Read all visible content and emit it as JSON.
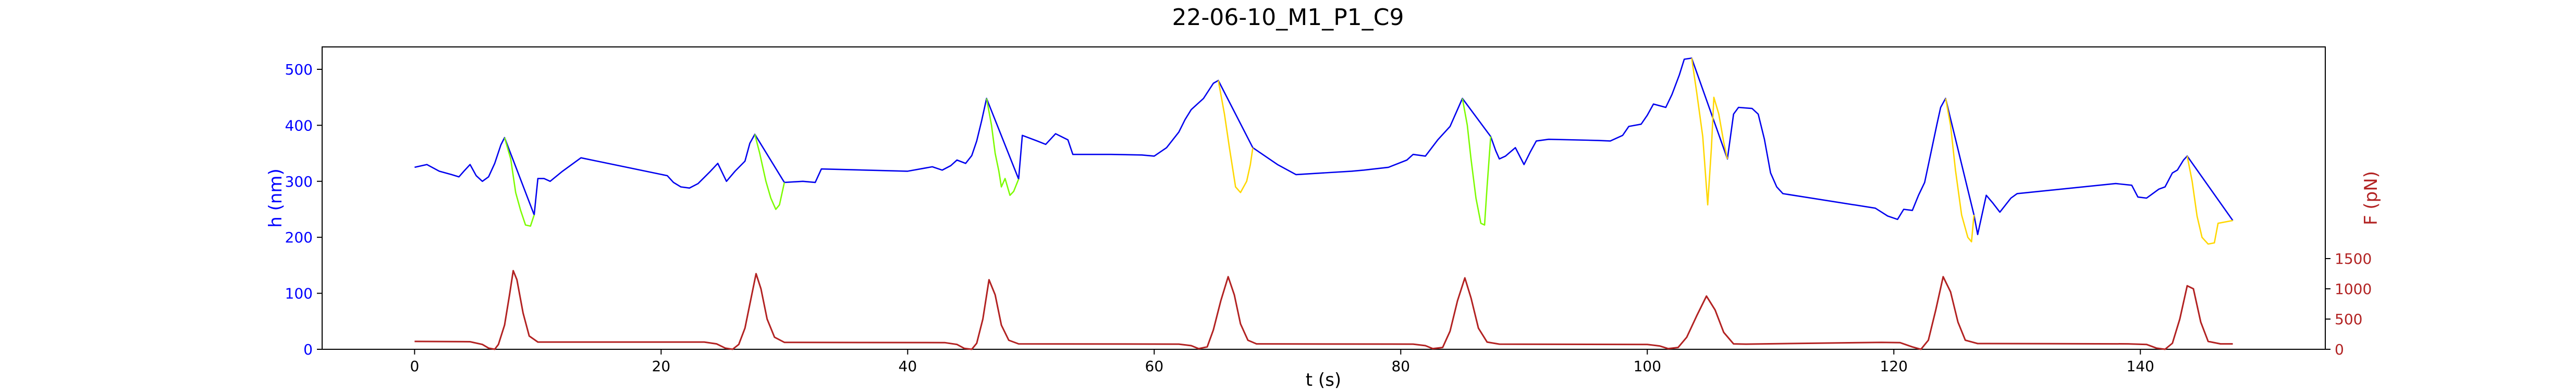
{
  "chart_data": {
    "type": "line",
    "title": "22-06-10_M1_P1_C9",
    "xlabel": "t (s)",
    "ylabel_left": "h (nm)",
    "ylabel_right": "F (pN)",
    "xlim": [
      -7.5,
      155
    ],
    "ylim_left": [
      0,
      540
    ],
    "ylim_right": [
      0,
      5000
    ],
    "x_ticks": [
      0,
      20,
      40,
      60,
      80,
      100,
      120,
      140
    ],
    "y_ticks_left": [
      0,
      100,
      200,
      300,
      400,
      500
    ],
    "y_ticks_right": [
      0,
      500,
      1000,
      1500
    ],
    "grid": false,
    "colors": {
      "height_base": "#0000ee",
      "segment_green": "#7cfc00",
      "segment_gold": "#ffd700",
      "force": "#b22222",
      "left_axis_text": "#0000ff",
      "right_axis_text": "#b22222"
    },
    "series": [
      {
        "axis": "left",
        "color": "#0000ee",
        "points": [
          [
            0,
            325
          ],
          [
            1,
            330
          ],
          [
            2,
            318
          ],
          [
            3,
            312
          ],
          [
            3.6,
            308
          ],
          [
            4,
            318
          ],
          [
            4.5,
            330
          ],
          [
            5.0,
            310
          ],
          [
            5.5,
            300
          ],
          [
            6.0,
            308
          ],
          [
            6.5,
            332
          ],
          [
            7.0,
            365
          ],
          [
            7.3,
            378
          ],
          [
            9.7,
            240
          ],
          [
            10.0,
            305
          ],
          [
            10.5,
            305
          ],
          [
            11.0,
            300
          ],
          [
            12.0,
            318
          ],
          [
            13.5,
            342
          ],
          [
            20.5,
            310
          ],
          [
            21.0,
            298
          ],
          [
            21.6,
            290
          ],
          [
            22.3,
            288
          ],
          [
            23.0,
            296
          ],
          [
            24.0,
            318
          ],
          [
            24.6,
            332
          ],
          [
            25.3,
            300
          ],
          [
            26.0,
            318
          ],
          [
            26.8,
            336
          ],
          [
            27.2,
            368
          ],
          [
            27.6,
            384
          ],
          [
            30.0,
            298
          ],
          [
            31.5,
            300
          ],
          [
            32.5,
            298
          ],
          [
            33.0,
            322
          ],
          [
            40.0,
            318
          ],
          [
            42.0,
            326
          ],
          [
            42.8,
            320
          ],
          [
            43.5,
            328
          ],
          [
            44.0,
            338
          ],
          [
            44.7,
            332
          ],
          [
            45.2,
            346
          ],
          [
            45.6,
            372
          ],
          [
            46.0,
            408
          ],
          [
            46.4,
            448
          ],
          [
            49.0,
            304
          ],
          [
            49.3,
            382
          ],
          [
            50.5,
            372
          ],
          [
            51.2,
            366
          ],
          [
            52.0,
            385
          ],
          [
            53.0,
            374
          ],
          [
            53.4,
            348
          ],
          [
            56.5,
            348
          ],
          [
            59.0,
            347
          ],
          [
            60.0,
            345
          ],
          [
            61.0,
            360
          ],
          [
            62.0,
            388
          ],
          [
            62.5,
            410
          ],
          [
            63.0,
            428
          ],
          [
            64.0,
            448
          ],
          [
            64.8,
            475
          ],
          [
            65.2,
            480
          ],
          [
            68.0,
            360
          ],
          [
            70.0,
            330
          ],
          [
            71.5,
            312
          ],
          [
            76.0,
            318
          ],
          [
            77.0,
            320
          ],
          [
            79.0,
            325
          ],
          [
            80.5,
            338
          ],
          [
            81.0,
            348
          ],
          [
            82.0,
            345
          ],
          [
            83.0,
            374
          ],
          [
            84.0,
            398
          ],
          [
            84.6,
            428
          ],
          [
            85.0,
            448
          ],
          [
            87.3,
            380
          ],
          [
            87.7,
            355
          ],
          [
            88.0,
            340
          ],
          [
            88.5,
            345
          ],
          [
            89.3,
            360
          ],
          [
            90.0,
            330
          ],
          [
            90.5,
            352
          ],
          [
            91.0,
            372
          ],
          [
            92.0,
            375
          ],
          [
            96.0,
            373
          ],
          [
            97.0,
            372
          ],
          [
            98.0,
            382
          ],
          [
            98.5,
            398
          ],
          [
            99.5,
            402
          ],
          [
            100.0,
            418
          ],
          [
            100.5,
            438
          ],
          [
            101.5,
            432
          ],
          [
            102.0,
            455
          ],
          [
            102.6,
            490
          ],
          [
            103.0,
            518
          ],
          [
            103.6,
            520
          ],
          [
            106.5,
            340
          ],
          [
            107.0,
            420
          ],
          [
            107.4,
            432
          ],
          [
            108.5,
            430
          ],
          [
            109.0,
            420
          ],
          [
            109.5,
            375
          ],
          [
            110.0,
            315
          ],
          [
            110.5,
            290
          ],
          [
            111.0,
            278
          ],
          [
            118.5,
            252
          ],
          [
            119.5,
            238
          ],
          [
            120.3,
            232
          ],
          [
            120.8,
            250
          ],
          [
            121.5,
            248
          ],
          [
            122.0,
            275
          ],
          [
            122.5,
            298
          ],
          [
            123.0,
            350
          ],
          [
            123.5,
            402
          ],
          [
            123.8,
            432
          ],
          [
            124.2,
            448
          ],
          [
            126.5,
            240
          ],
          [
            126.8,
            205
          ],
          [
            127.5,
            275
          ],
          [
            128.0,
            262
          ],
          [
            128.6,
            245
          ],
          [
            129.5,
            270
          ],
          [
            130.0,
            278
          ],
          [
            138.0,
            296
          ],
          [
            139.3,
            293
          ],
          [
            139.8,
            272
          ],
          [
            140.5,
            270
          ],
          [
            141.0,
            278
          ],
          [
            141.5,
            286
          ],
          [
            142.0,
            290
          ],
          [
            142.6,
            315
          ],
          [
            143.0,
            320
          ],
          [
            143.5,
            338
          ],
          [
            143.8,
            345
          ],
          [
            147.5,
            230
          ]
        ]
      },
      {
        "axis": "left",
        "color": "#7cfc00",
        "points": [
          [
            7.3,
            378
          ],
          [
            7.8,
            340
          ],
          [
            8.2,
            280
          ],
          [
            8.6,
            248
          ],
          [
            9.0,
            222
          ],
          [
            9.4,
            220
          ],
          [
            9.7,
            240
          ]
        ]
      },
      {
        "axis": "left",
        "color": "#7cfc00",
        "points": [
          [
            27.6,
            384
          ],
          [
            28.0,
            350
          ],
          [
            28.5,
            300
          ],
          [
            28.9,
            270
          ],
          [
            29.3,
            250
          ],
          [
            29.6,
            258
          ],
          [
            29.8,
            278
          ],
          [
            30.0,
            298
          ]
        ]
      },
      {
        "axis": "left",
        "color": "#7cfc00",
        "points": [
          [
            46.4,
            448
          ],
          [
            46.8,
            400
          ],
          [
            47.1,
            350
          ],
          [
            47.4,
            318
          ],
          [
            47.6,
            290
          ],
          [
            47.9,
            305
          ],
          [
            48.3,
            275
          ],
          [
            48.6,
            282
          ],
          [
            49.0,
            304
          ]
        ]
      },
      {
        "axis": "left",
        "color": "#ffd700",
        "points": [
          [
            65.2,
            480
          ],
          [
            65.7,
            420
          ],
          [
            66.1,
            360
          ],
          [
            66.6,
            290
          ],
          [
            67.0,
            280
          ],
          [
            67.5,
            300
          ],
          [
            67.8,
            330
          ],
          [
            68.0,
            360
          ]
        ]
      },
      {
        "axis": "left",
        "color": "#7cfc00",
        "points": [
          [
            85.0,
            448
          ],
          [
            85.4,
            400
          ],
          [
            85.7,
            340
          ],
          [
            86.1,
            270
          ],
          [
            86.5,
            225
          ],
          [
            86.8,
            222
          ],
          [
            87.0,
            290
          ],
          [
            87.3,
            380
          ]
        ]
      },
      {
        "axis": "left",
        "color": "#ffd700",
        "points": [
          [
            103.6,
            520
          ],
          [
            104.0,
            460
          ],
          [
            104.5,
            380
          ],
          [
            104.9,
            258
          ],
          [
            105.2,
            360
          ],
          [
            105.4,
            450
          ],
          [
            105.8,
            420
          ],
          [
            106.2,
            370
          ],
          [
            106.5,
            340
          ]
        ]
      },
      {
        "axis": "left",
        "color": "#ffd700",
        "points": [
          [
            124.2,
            448
          ],
          [
            124.6,
            400
          ],
          [
            125.0,
            320
          ],
          [
            125.5,
            240
          ],
          [
            126.0,
            200
          ],
          [
            126.3,
            192
          ],
          [
            126.5,
            240
          ]
        ]
      },
      {
        "axis": "left",
        "color": "#ffd700",
        "points": [
          [
            143.8,
            345
          ],
          [
            144.2,
            300
          ],
          [
            144.6,
            238
          ],
          [
            145.0,
            200
          ],
          [
            145.5,
            188
          ],
          [
            146.0,
            190
          ],
          [
            146.3,
            225
          ],
          [
            147.5,
            230
          ]
        ]
      },
      {
        "axis": "right",
        "color": "#b22222",
        "points": [
          [
            0,
            130
          ],
          [
            4.5,
            125
          ],
          [
            5.5,
            80
          ],
          [
            6.0,
            20
          ],
          [
            6.5,
            0
          ],
          [
            6.8,
            80
          ],
          [
            7.3,
            400
          ],
          [
            7.7,
            900
          ],
          [
            8.0,
            1300
          ],
          [
            8.3,
            1150
          ],
          [
            8.8,
            600
          ],
          [
            9.3,
            220
          ],
          [
            10.0,
            120
          ],
          [
            23.5,
            120
          ],
          [
            24.5,
            90
          ],
          [
            25.2,
            20
          ],
          [
            25.8,
            0
          ],
          [
            26.3,
            80
          ],
          [
            26.8,
            350
          ],
          [
            27.3,
            850
          ],
          [
            27.7,
            1250
          ],
          [
            28.1,
            1000
          ],
          [
            28.6,
            500
          ],
          [
            29.2,
            200
          ],
          [
            30.0,
            115
          ],
          [
            43.0,
            110
          ],
          [
            44.0,
            80
          ],
          [
            44.6,
            15
          ],
          [
            45.2,
            0
          ],
          [
            45.6,
            100
          ],
          [
            46.1,
            500
          ],
          [
            46.6,
            1150
          ],
          [
            47.1,
            900
          ],
          [
            47.6,
            400
          ],
          [
            48.2,
            150
          ],
          [
            49.0,
            90
          ],
          [
            62.0,
            85
          ],
          [
            63.0,
            60
          ],
          [
            63.6,
            10
          ],
          [
            64.3,
            40
          ],
          [
            64.8,
            320
          ],
          [
            65.4,
            800
          ],
          [
            66.0,
            1200
          ],
          [
            66.5,
            900
          ],
          [
            67.0,
            420
          ],
          [
            67.6,
            150
          ],
          [
            68.3,
            90
          ],
          [
            81.0,
            85
          ],
          [
            82.0,
            60
          ],
          [
            82.6,
            10
          ],
          [
            83.4,
            30
          ],
          [
            84.0,
            300
          ],
          [
            84.6,
            800
          ],
          [
            85.2,
            1180
          ],
          [
            85.7,
            850
          ],
          [
            86.3,
            350
          ],
          [
            87.0,
            120
          ],
          [
            88.0,
            85
          ],
          [
            100.0,
            80
          ],
          [
            101.0,
            55
          ],
          [
            101.7,
            10
          ],
          [
            102.5,
            30
          ],
          [
            103.2,
            200
          ],
          [
            104.0,
            550
          ],
          [
            104.8,
            880
          ],
          [
            105.5,
            650
          ],
          [
            106.2,
            280
          ],
          [
            107.0,
            90
          ],
          [
            108.0,
            85
          ],
          [
            119.0,
            115
          ],
          [
            120.5,
            110
          ],
          [
            121.5,
            40
          ],
          [
            122.2,
            0
          ],
          [
            122.8,
            150
          ],
          [
            123.4,
            650
          ],
          [
            124.0,
            1200
          ],
          [
            124.6,
            950
          ],
          [
            125.2,
            450
          ],
          [
            125.8,
            150
          ],
          [
            126.8,
            95
          ],
          [
            139.0,
            90
          ],
          [
            140.5,
            80
          ],
          [
            141.3,
            20
          ],
          [
            142.0,
            0
          ],
          [
            142.6,
            100
          ],
          [
            143.2,
            500
          ],
          [
            143.8,
            1050
          ],
          [
            144.3,
            1000
          ],
          [
            144.9,
            450
          ],
          [
            145.5,
            130
          ],
          [
            146.5,
            90
          ],
          [
            147.5,
            90
          ]
        ]
      }
    ]
  }
}
